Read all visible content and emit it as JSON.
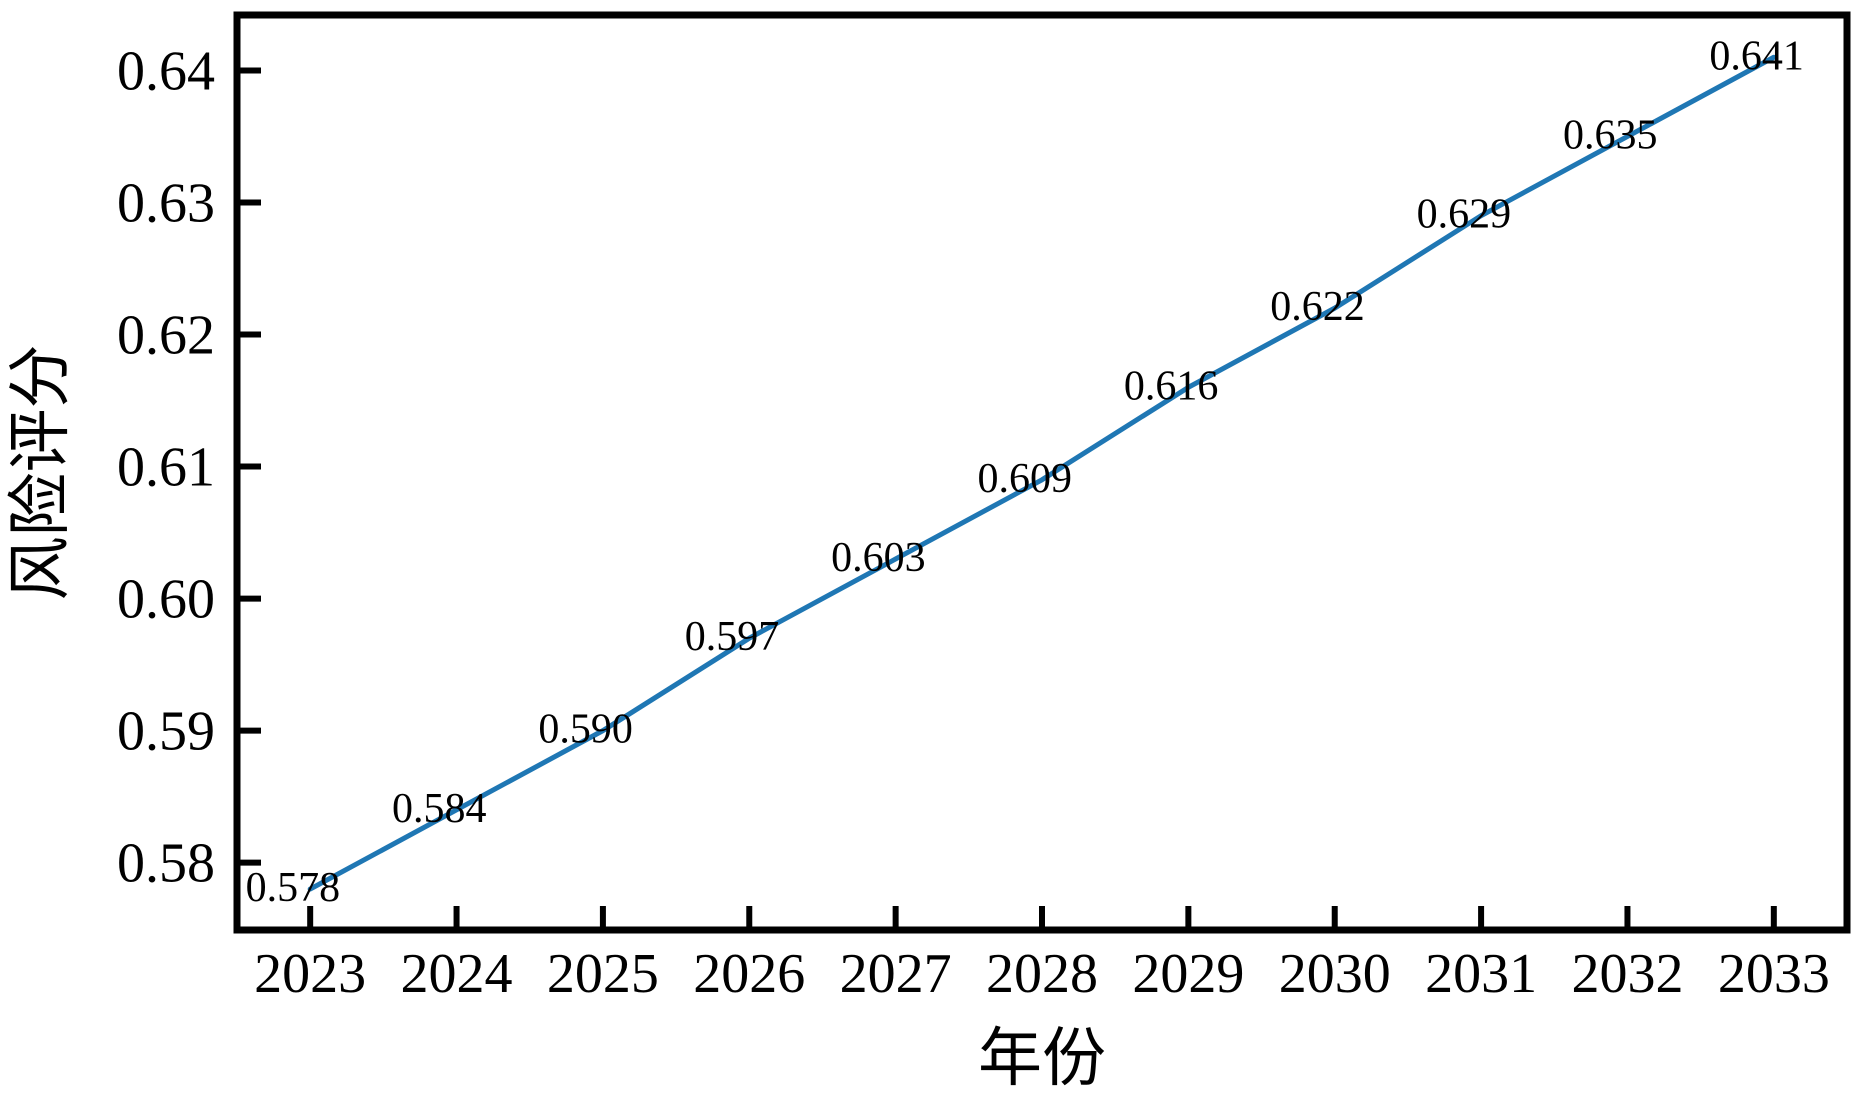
{
  "figure": {
    "background": "#ffffff",
    "axis_color": "#000000",
    "text_color": "#000000"
  },
  "chart_data": {
    "type": "line",
    "title": "",
    "xlabel": "年份",
    "ylabel": "风险评分",
    "x": [
      2023,
      2024,
      2025,
      2026,
      2027,
      2028,
      2029,
      2030,
      2031,
      2032,
      2033
    ],
    "values": [
      0.578,
      0.584,
      0.59,
      0.597,
      0.603,
      0.609,
      0.616,
      0.622,
      0.629,
      0.635,
      0.641
    ],
    "point_labels": [
      "0.578",
      "0.584",
      "0.590",
      "0.597",
      "0.603",
      "0.609",
      "0.616",
      "0.622",
      "0.629",
      "0.635",
      "0.641"
    ],
    "xticks": [
      2023,
      2024,
      2025,
      2026,
      2027,
      2028,
      2029,
      2030,
      2031,
      2032,
      2033
    ],
    "xtick_labels": [
      "2023",
      "2024",
      "2025",
      "2026",
      "2027",
      "2028",
      "2029",
      "2030",
      "2031",
      "2032",
      "2033"
    ],
    "yticks": [
      0.58,
      0.59,
      0.6,
      0.61,
      0.62,
      0.63,
      0.64
    ],
    "ytick_labels": [
      "0.58",
      "0.59",
      "0.60",
      "0.61",
      "0.62",
      "0.63",
      "0.64"
    ],
    "xlim": [
      2022.5,
      2033.5
    ],
    "ylim": [
      0.5749,
      0.6442
    ],
    "grid": false,
    "legend": null,
    "line_color": "#1f77b4",
    "line_width": 5
  }
}
